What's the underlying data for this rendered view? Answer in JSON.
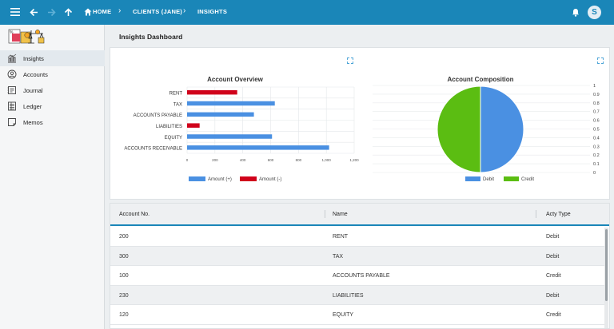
{
  "topbar": {
    "breadcrumb": [
      {
        "label": "HOME"
      },
      {
        "label": "CLIENTS (JANE)"
      },
      {
        "label": "INSIGHTS"
      }
    ],
    "avatar_initial": "S"
  },
  "sidebar": {
    "items": [
      {
        "label": "Insights",
        "icon": "insights-chart-icon",
        "active": true
      },
      {
        "label": "Accounts",
        "icon": "accounts-icon",
        "active": false
      },
      {
        "label": "Journal",
        "icon": "journal-icon",
        "active": false
      },
      {
        "label": "Ledger",
        "icon": "ledger-icon",
        "active": false
      },
      {
        "label": "Memos",
        "icon": "memo-icon",
        "active": false
      }
    ]
  },
  "page": {
    "title": "Insights Dashboard"
  },
  "colors": {
    "accent": "#1a86b8",
    "positive": "#4a90e2",
    "negative": "#d0021b",
    "credit": "#5bbd12"
  },
  "chart_data": [
    {
      "type": "bar",
      "orientation": "horizontal",
      "title": "Account Overview",
      "categories": [
        "RENT",
        "TAX",
        "ACCOUNTS PAYABLE",
        "LIABILITIES",
        "EQUITY",
        "ACCOUNTS RECEIVABLE"
      ],
      "series": [
        {
          "name": "Amount (+)",
          "color": "#4a90e2",
          "values": [
            0,
            630,
            480,
            0,
            610,
            1020
          ]
        },
        {
          "name": "Amount (-)",
          "color": "#d0021b",
          "values": [
            360,
            0,
            0,
            90,
            0,
            0
          ]
        }
      ],
      "xlim": [
        0,
        1200
      ],
      "xticks": [
        "0",
        "200",
        "400",
        "600",
        "800",
        "1,000",
        "1,200"
      ],
      "legend": "bottom",
      "grid": true
    },
    {
      "type": "pie",
      "title": "Account Composition",
      "slices": [
        {
          "name": "Debit",
          "value": 0.5,
          "color": "#4a90e2"
        },
        {
          "name": "Credit",
          "value": 0.5,
          "color": "#5bbd12"
        }
      ],
      "yticks": [
        "1",
        "0.9",
        "0.8",
        "0.7",
        "0.6",
        "0.5",
        "0.4",
        "0.3",
        "0.2",
        "0.1",
        "0"
      ],
      "legend": "bottom",
      "grid": true
    }
  ],
  "table": {
    "columns": [
      "Account No.",
      "Name",
      "Acty Type"
    ],
    "rows": [
      {
        "account_no": "200",
        "name": "RENT",
        "type": "Debit"
      },
      {
        "account_no": "300",
        "name": "TAX",
        "type": "Debit"
      },
      {
        "account_no": "100",
        "name": "ACCOUNTS PAYABLE",
        "type": "Credit"
      },
      {
        "account_no": "230",
        "name": "LIABILITIES",
        "type": "Debit"
      },
      {
        "account_no": "120",
        "name": "EQUITY",
        "type": "Credit"
      }
    ]
  }
}
